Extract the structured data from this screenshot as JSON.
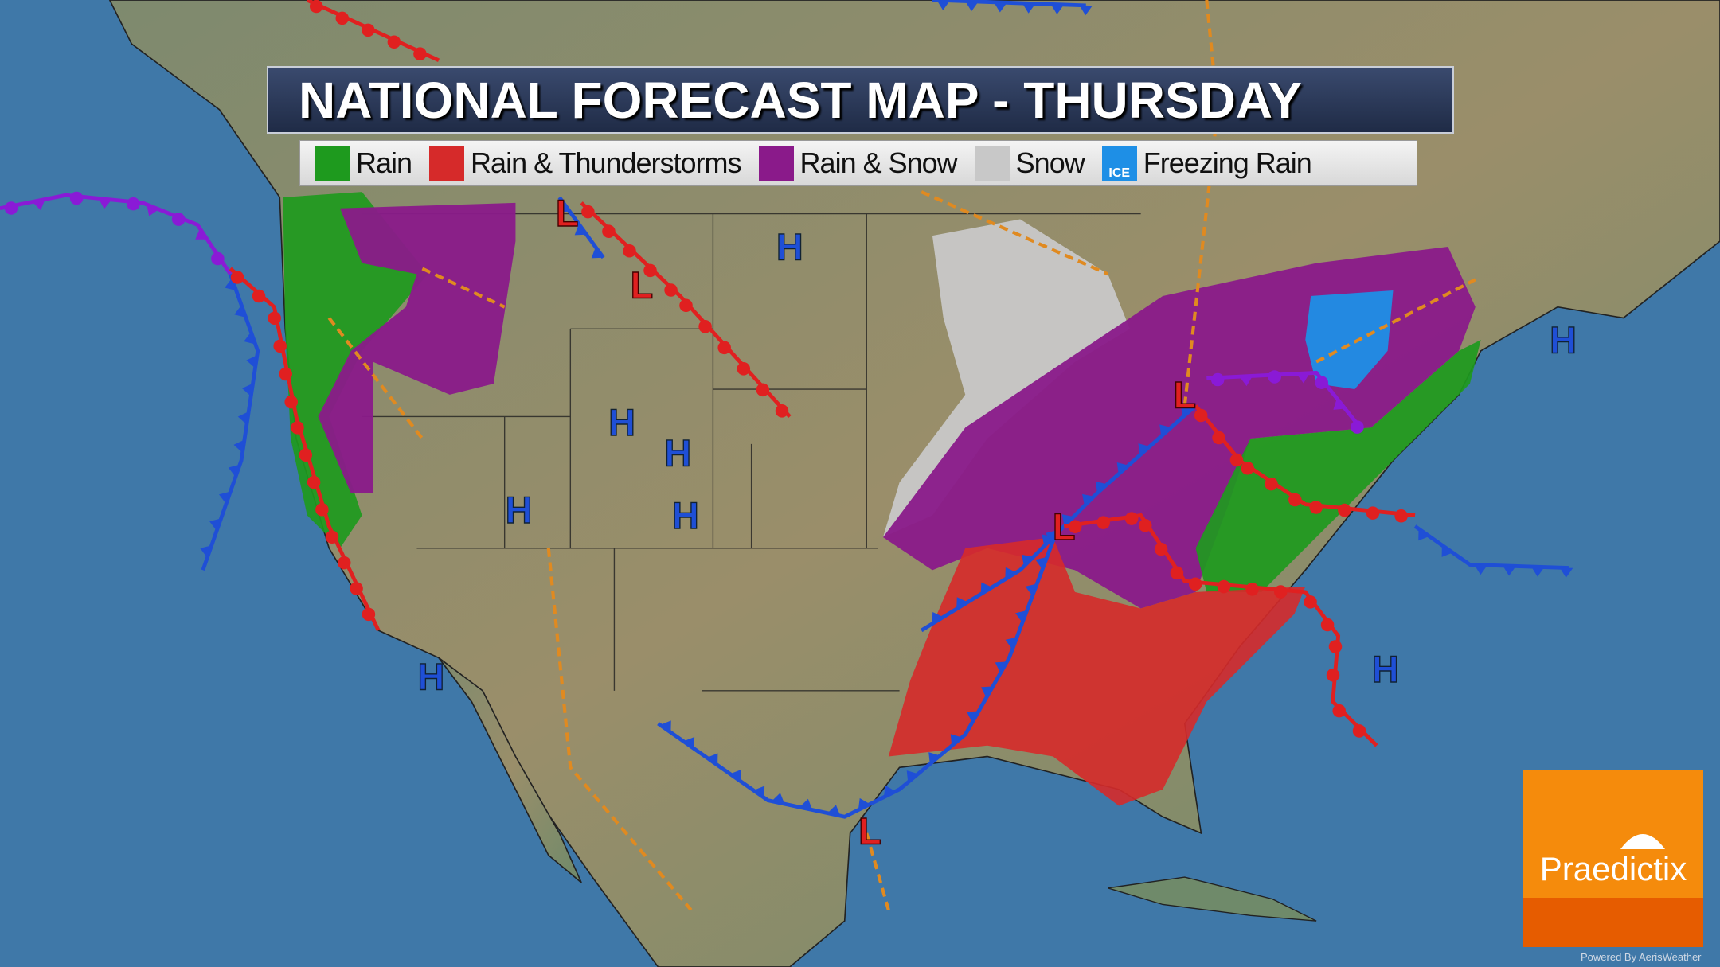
{
  "title": "NATIONAL FORECAST MAP - THURSDAY",
  "legend": [
    {
      "label": "Rain",
      "color": "#1e9a1e",
      "icon": "raindrop-icon"
    },
    {
      "label": "Rain & Thunderstorms",
      "color": "#d62a2a",
      "icon": "lightning-icon"
    },
    {
      "label": "Rain & Snow",
      "color": "#8a1a8a",
      "icon": "snowflake-icon"
    },
    {
      "label": "Snow",
      "color": "#c8c8c8",
      "icon": "snowflake-icon"
    },
    {
      "label": "Freezing Rain",
      "color": "#1e8fe6",
      "icon": "ice-icon",
      "badge": "ICE"
    }
  ],
  "pressure_centers": {
    "high": "H",
    "low": "L",
    "high_color": "#1f4fd6",
    "low_color": "#e02020"
  },
  "colors": {
    "ocean": "#3f78a8",
    "land": "#8c8a68",
    "cold_front": "#1f4fd6",
    "warm_front": "#e02020",
    "occluded_front": "#8a1ad6",
    "trough": "#e08a20"
  },
  "logo": {
    "name": "Praedictix",
    "colors": [
      "#f58b0c",
      "#e65c00"
    ]
  },
  "credit": "Powered By AerisWeather"
}
